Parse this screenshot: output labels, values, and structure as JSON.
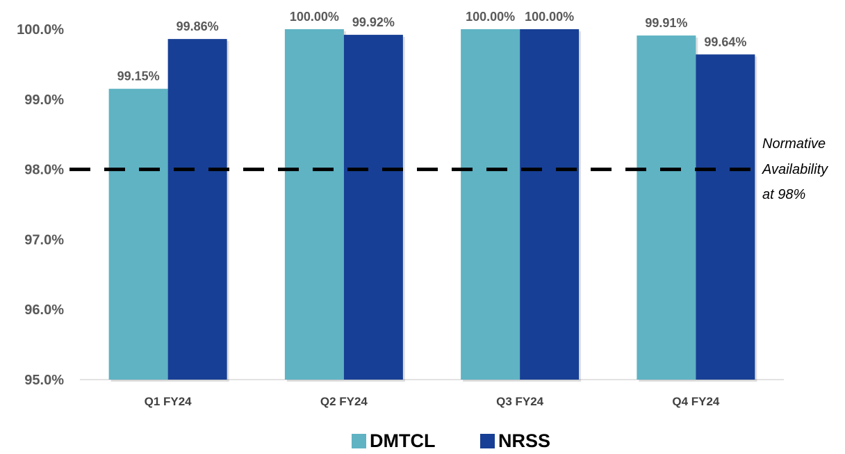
{
  "chart_data": {
    "type": "bar",
    "categories": [
      "Q1 FY24",
      "Q2 FY24",
      "Q3 FY24",
      "Q4 FY24"
    ],
    "series": [
      {
        "name": "DMTCL",
        "values": [
          99.15,
          100.0,
          100.0,
          99.91
        ],
        "labels": [
          "99.15%",
          "100.00%",
          "100.00%",
          "99.91%"
        ],
        "color": "#5fb3c3"
      },
      {
        "name": "NRSS",
        "values": [
          99.86,
          99.92,
          100.0,
          99.64
        ],
        "labels": [
          "99.86%",
          "99.92%",
          "100.00%",
          "99.64%"
        ],
        "color": "#173f95"
      }
    ],
    "ylim": [
      95.0,
      100.0
    ],
    "y_ticks": [
      95.0,
      96.0,
      97.0,
      98.0,
      99.0,
      100.0
    ],
    "y_tick_labels": [
      "95.0%",
      "96.0%",
      "97.0%",
      "98.0%",
      "99.0%",
      "100.0%"
    ],
    "reference_line": {
      "value": 98.0,
      "style": "dashed",
      "color": "#000000"
    },
    "annotation_lines": [
      "Normative",
      "Availability",
      "at 98%"
    ],
    "legend_position": "bottom-center",
    "grid": false
  }
}
